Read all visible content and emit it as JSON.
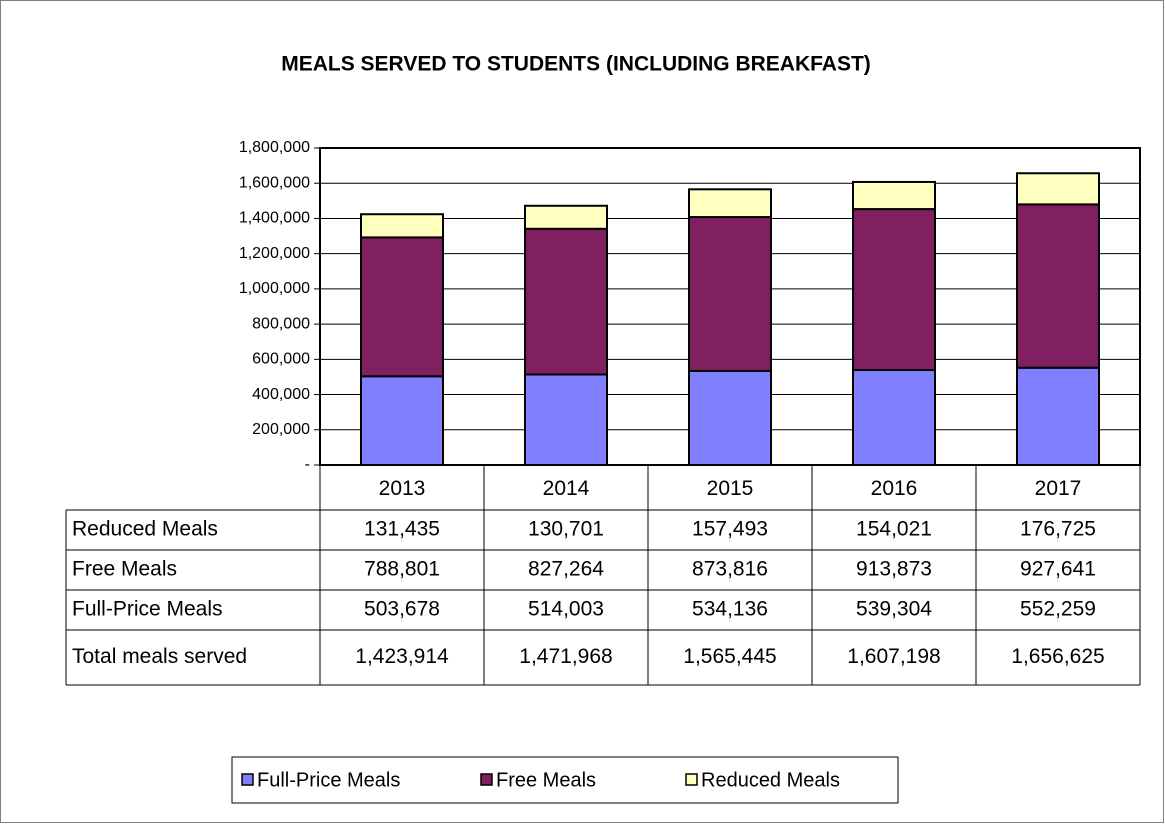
{
  "chart_data": {
    "type": "bar",
    "stacked": true,
    "title": "MEALS SERVED TO STUDENTS (INCLUDING BREAKFAST)",
    "categories": [
      "2013",
      "2014",
      "2015",
      "2016",
      "2017"
    ],
    "series": [
      {
        "name": "Full-Price Meals",
        "color": "#8080ff",
        "values": [
          503678,
          514003,
          534136,
          539304,
          552259
        ],
        "value_labels": [
          "503,678",
          "514,003",
          "534,136",
          "539,304",
          "552,259"
        ]
      },
      {
        "name": "Free Meals",
        "color": "#802060",
        "values": [
          788801,
          827264,
          873816,
          913873,
          927641
        ],
        "value_labels": [
          "788,801",
          "827,264",
          "873,816",
          "913,873",
          "927,641"
        ]
      },
      {
        "name": "Reduced Meals",
        "color": "#ffffc0",
        "values": [
          131435,
          130701,
          157493,
          154021,
          176725
        ],
        "value_labels": [
          "131,435",
          "130,701",
          "157,493",
          "154,021",
          "176,725"
        ]
      }
    ],
    "totals": {
      "name": "Total meals served",
      "labels": [
        "1,423,914",
        "1,471,968",
        "1,565,445",
        "1,607,198",
        "1,656,625"
      ]
    },
    "ylim": [
      0,
      1800000
    ],
    "yticks": [
      {
        "value": 0,
        "label": "-"
      },
      {
        "value": 200000,
        "label": "200,000"
      },
      {
        "value": 400000,
        "label": "400,000"
      },
      {
        "value": 600000,
        "label": "600,000"
      },
      {
        "value": 800000,
        "label": "800,000"
      },
      {
        "value": 1000000,
        "label": "1,000,000"
      },
      {
        "value": 1200000,
        "label": "1,200,000"
      },
      {
        "value": 1400000,
        "label": "1,400,000"
      },
      {
        "value": 1600000,
        "label": "1,600,000"
      },
      {
        "value": 1800000,
        "label": "1,800,000"
      }
    ],
    "grid": true,
    "legend": "bottom"
  }
}
